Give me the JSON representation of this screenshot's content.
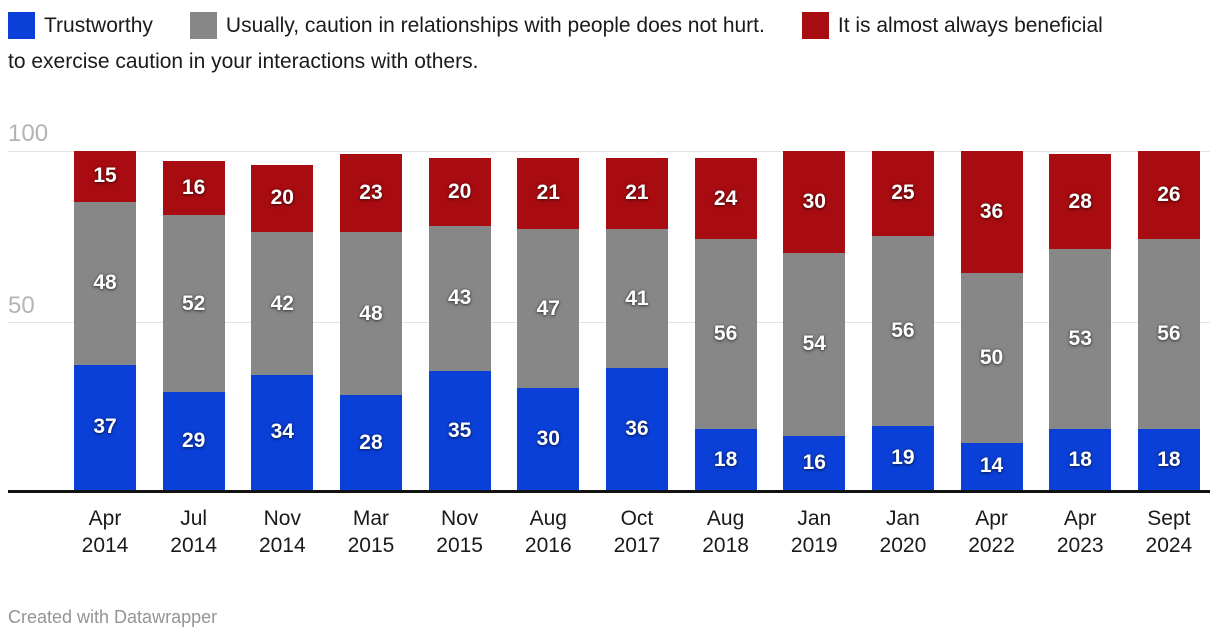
{
  "legend": {
    "row1": [
      {
        "name": "trustworthy",
        "label": "Trustworthy"
      },
      {
        "name": "usually-caution",
        "label": "Usually, caution in relationships with people does not hurt."
      },
      {
        "name": "always-caution",
        "label": "It is almost always beneficial"
      }
    ],
    "row2_continuation": "to exercise caution in your interactions with others."
  },
  "y_axis": {
    "ticks": [
      "100",
      "50"
    ]
  },
  "x_axis": {
    "categories": [
      [
        "Apr",
        "2014"
      ],
      [
        "Jul",
        "2014"
      ],
      [
        "Nov",
        "2014"
      ],
      [
        "Mar",
        "2015"
      ],
      [
        "Nov",
        "2015"
      ],
      [
        "Aug",
        "2016"
      ],
      [
        "Oct",
        "2017"
      ],
      [
        "Aug",
        "2018"
      ],
      [
        "Jan",
        "2019"
      ],
      [
        "Jan",
        "2020"
      ],
      [
        "Apr",
        "2022"
      ],
      [
        "Apr",
        "2023"
      ],
      [
        "Sept",
        "2024"
      ]
    ]
  },
  "footer": {
    "credit": "Created with Datawrapper"
  },
  "colors": {
    "trustworthy_blue": "#0a40d8",
    "caution_gray": "#878787",
    "always_caution_red": "#a80c11",
    "axis_tick_gray": "#b4b4b4",
    "gridline": "#e3e3e3",
    "baseline": "#121212",
    "value_label": "#ffffff",
    "footer_gray": "#949494",
    "text_dark": "#1a1a1a"
  },
  "chart_data": {
    "type": "bar",
    "stacked": true,
    "title": "",
    "xlabel": "",
    "ylabel": "",
    "ylim": [
      0,
      100
    ],
    "y_ticks": [
      50,
      100
    ],
    "grid": true,
    "legend_position": "top",
    "value_labels": true,
    "categories": [
      "Apr 2014",
      "Jul 2014",
      "Nov 2014",
      "Mar 2015",
      "Nov 2015",
      "Aug 2016",
      "Oct 2017",
      "Aug 2018",
      "Jan 2019",
      "Jan 2020",
      "Apr 2022",
      "Apr 2023",
      "Sept 2024"
    ],
    "series": [
      {
        "name": "Trustworthy",
        "color": "#0a40d8",
        "values": [
          37,
          29,
          34,
          28,
          35,
          30,
          36,
          18,
          16,
          19,
          14,
          18,
          18
        ]
      },
      {
        "name": "Usually, caution in relationships with people does not hurt.",
        "color": "#878787",
        "values": [
          48,
          52,
          42,
          48,
          43,
          47,
          41,
          56,
          54,
          56,
          50,
          53,
          56
        ]
      },
      {
        "name": "It is almost always beneficial to exercise caution in your interactions with others.",
        "color": "#a80c11",
        "values": [
          15,
          16,
          20,
          23,
          20,
          21,
          21,
          24,
          30,
          25,
          36,
          28,
          26
        ]
      }
    ],
    "credit": "Created with Datawrapper"
  }
}
